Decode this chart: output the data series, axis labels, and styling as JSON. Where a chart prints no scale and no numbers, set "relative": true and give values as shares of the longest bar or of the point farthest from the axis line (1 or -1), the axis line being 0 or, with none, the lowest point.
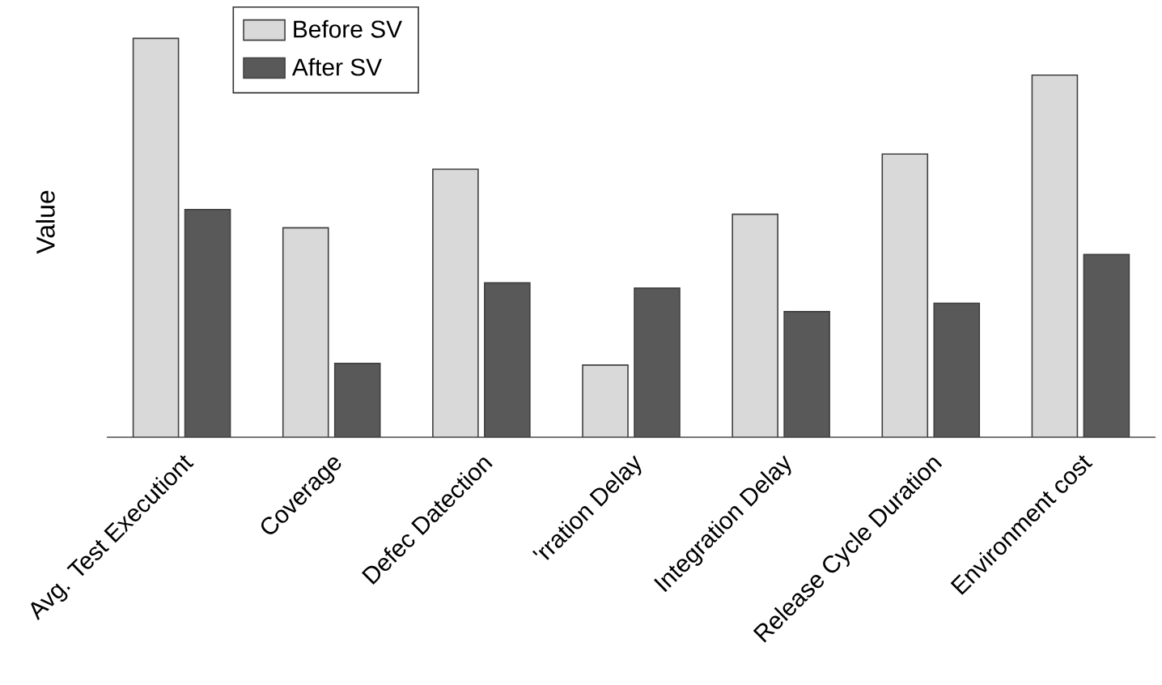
{
  "chart_data": {
    "type": "bar",
    "relative": true,
    "ylabel": "Value",
    "categories": [
      "Avg. Test Executiont",
      "Coverage",
      "Defec Datection",
      "'rration Delay",
      "Integration Delay",
      "Release Cycle Duration",
      "Environment cost"
    ],
    "series": [
      {
        "name": "Before SV",
        "color": "#d9d9d9",
        "values": [
          1.0,
          0.525,
          0.672,
          0.181,
          0.559,
          0.71,
          0.908
        ]
      },
      {
        "name": "After SV",
        "color": "#595959",
        "values": [
          0.571,
          0.185,
          0.387,
          0.374,
          0.315,
          0.336,
          0.458
        ]
      }
    ],
    "legend": "top left"
  }
}
